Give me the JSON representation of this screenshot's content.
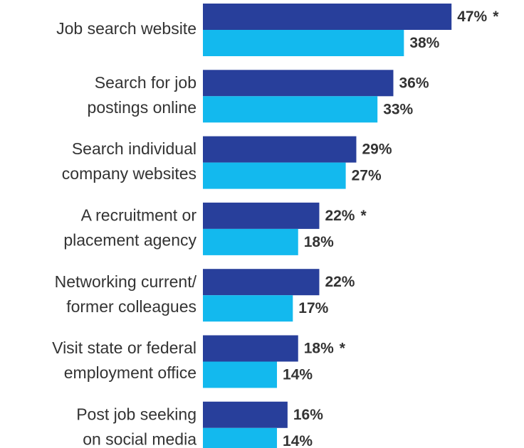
{
  "chart_data": {
    "type": "bar",
    "orientation": "horizontal",
    "categories": [
      [
        "Job search website"
      ],
      [
        "Search for job",
        "postings online"
      ],
      [
        "Search individual",
        "company websites"
      ],
      [
        "A recruitment or",
        "placement agency"
      ],
      [
        "Networking current/",
        "former colleagues"
      ],
      [
        "Visit state or federal",
        "employment office"
      ],
      [
        "Post job seeking",
        "on social media"
      ]
    ],
    "series": [
      {
        "color": "#283f9b",
        "values": [
          47,
          36,
          29,
          22,
          22,
          18,
          16
        ],
        "value_labels": [
          "47%",
          "36%",
          "29%",
          "22%",
          "22%",
          "18%",
          "16%"
        ],
        "annotations": [
          "*",
          null,
          null,
          "*",
          null,
          "*",
          null
        ]
      },
      {
        "color": "#13b9ee",
        "values": [
          38,
          33,
          27,
          18,
          17,
          14,
          14
        ],
        "value_labels": [
          "38%",
          "33%",
          "27%",
          "18%",
          "17%",
          "14%",
          "14%"
        ]
      }
    ]
  }
}
